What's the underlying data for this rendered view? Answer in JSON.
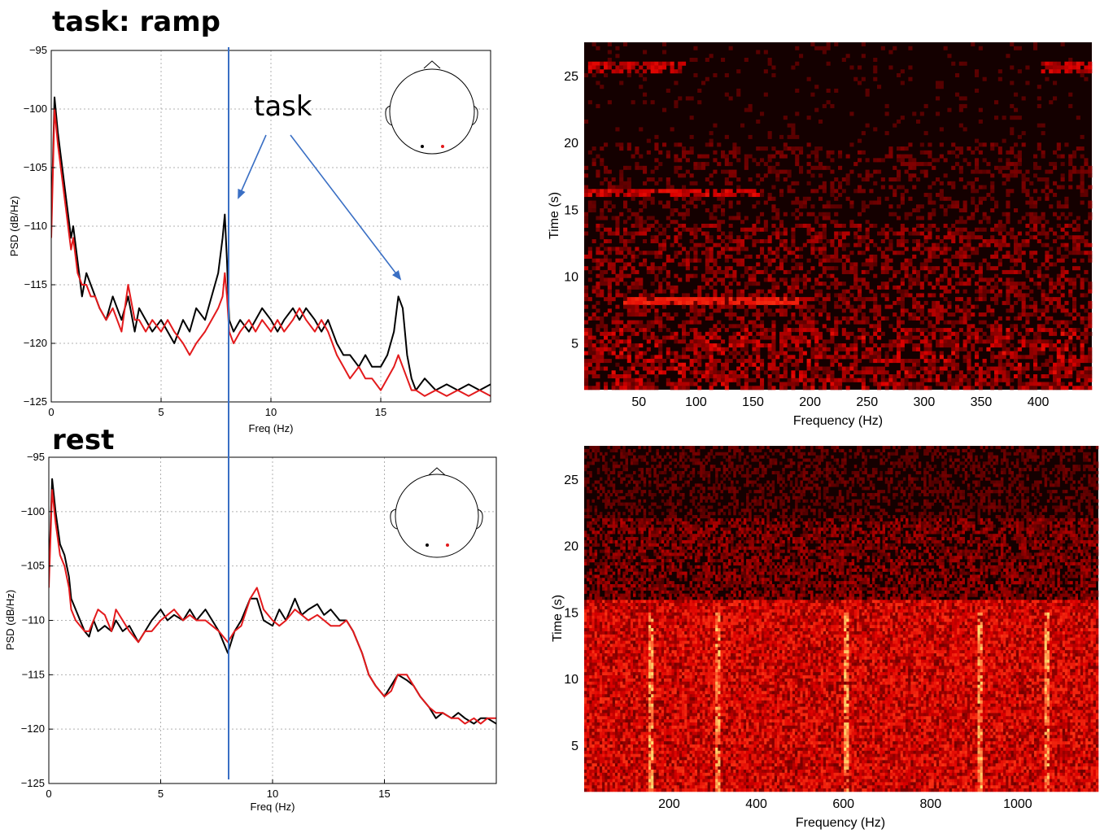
{
  "titles": {
    "task": "task: ramp",
    "rest": "rest"
  },
  "annotation": {
    "text": "task"
  },
  "colors": {
    "black": "#000000",
    "red": "#e31a1c",
    "marker": "#3a6fc4",
    "spec_bg": "#140000"
  },
  "chart_data": [
    {
      "type": "line",
      "id": "psd-task",
      "xlabel": "Freq (Hz)",
      "ylabel": "PSD (dB/Hz)",
      "xlim": [
        0,
        20
      ],
      "ylim": [
        -125,
        -95
      ],
      "xticks": [
        0,
        5,
        10,
        15
      ],
      "yticks": [
        -95,
        -100,
        -105,
        -110,
        -115,
        -120,
        -125
      ],
      "grid": true,
      "marker_line_x": 8,
      "series": [
        {
          "color": "#000000",
          "x": [
            0,
            0.15,
            0.3,
            0.5,
            0.7,
            0.9,
            1,
            1.2,
            1.4,
            1.6,
            1.8,
            2,
            2.2,
            2.5,
            2.8,
            3,
            3.2,
            3.5,
            3.8,
            4,
            4.3,
            4.6,
            5,
            5.3,
            5.6,
            6,
            6.3,
            6.6,
            7,
            7.3,
            7.6,
            7.8,
            7.9,
            8,
            8.1,
            8.3,
            8.6,
            9,
            9.3,
            9.6,
            10,
            10.3,
            10.6,
            11,
            11.3,
            11.6,
            12,
            12.3,
            12.6,
            13,
            13.3,
            13.6,
            14,
            14.3,
            14.6,
            15,
            15.3,
            15.6,
            15.8,
            16,
            16.2,
            16.4,
            16.6,
            17,
            17.5,
            18,
            18.5,
            19,
            19.5,
            20
          ],
          "y": [
            -110,
            -99,
            -102,
            -105,
            -108,
            -111,
            -110,
            -113,
            -116,
            -114,
            -115,
            -116,
            -117,
            -118,
            -116,
            -117,
            -118,
            -116,
            -119,
            -117,
            -118,
            -119,
            -118,
            -119,
            -120,
            -118,
            -119,
            -117,
            -118,
            -116,
            -114,
            -111,
            -109,
            -113,
            -118,
            -119,
            -118,
            -119,
            -118,
            -117,
            -118,
            -119,
            -118,
            -117,
            -118,
            -117,
            -118,
            -119,
            -118,
            -120,
            -121,
            -121,
            -122,
            -121,
            -122,
            -122,
            -121,
            -119,
            -116,
            -117,
            -121,
            -123,
            -124,
            -123,
            -124,
            -123.5,
            -124,
            -123.5,
            -124,
            -123.5
          ]
        },
        {
          "color": "#e31a1c",
          "x": [
            0,
            0.15,
            0.3,
            0.5,
            0.7,
            0.9,
            1,
            1.2,
            1.4,
            1.6,
            1.8,
            2,
            2.2,
            2.5,
            2.8,
            3,
            3.2,
            3.5,
            3.8,
            4,
            4.3,
            4.6,
            5,
            5.3,
            5.6,
            6,
            6.3,
            6.6,
            7,
            7.3,
            7.6,
            7.8,
            7.9,
            8,
            8.1,
            8.3,
            8.6,
            9,
            9.3,
            9.6,
            10,
            10.3,
            10.6,
            11,
            11.3,
            11.6,
            12,
            12.3,
            12.6,
            13,
            13.3,
            13.6,
            14,
            14.3,
            14.6,
            15,
            15.3,
            15.6,
            15.8,
            16,
            16.2,
            16.4,
            16.6,
            17,
            17.5,
            18,
            18.5,
            19,
            19.5,
            20
          ],
          "y": [
            -111,
            -100,
            -103,
            -106,
            -109,
            -112,
            -111,
            -114,
            -115,
            -115,
            -116,
            -116,
            -117,
            -118,
            -117,
            -118,
            -119,
            -115,
            -118,
            -118,
            -119,
            -118,
            -119,
            -118,
            -119,
            -120,
            -121,
            -120,
            -119,
            -118,
            -117,
            -116,
            -114,
            -116,
            -119,
            -120,
            -119,
            -118,
            -119,
            -118,
            -119,
            -118,
            -119,
            -118,
            -117,
            -118,
            -119,
            -118,
            -119,
            -121,
            -122,
            -123,
            -122,
            -123,
            -123,
            -124,
            -123,
            -122,
            -121,
            -122,
            -123,
            -124,
            -124,
            -124.5,
            -124,
            -124.5,
            -124,
            -124.5,
            -124,
            -124.5
          ]
        }
      ]
    },
    {
      "type": "line",
      "id": "psd-rest",
      "xlabel": "Freq (Hz)",
      "ylabel": "PSD (dB/Hz)",
      "xlim": [
        0,
        20
      ],
      "ylim": [
        -125,
        -95
      ],
      "xticks": [
        0,
        5,
        10,
        15
      ],
      "yticks": [
        -95,
        -100,
        -105,
        -110,
        -115,
        -120,
        -125
      ],
      "grid": true,
      "marker_line_x": 8,
      "series": [
        {
          "color": "#000000",
          "x": [
            0,
            0.15,
            0.3,
            0.5,
            0.7,
            0.9,
            1,
            1.2,
            1.4,
            1.6,
            1.8,
            2,
            2.2,
            2.5,
            2.8,
            3,
            3.3,
            3.6,
            4,
            4.3,
            4.6,
            5,
            5.3,
            5.6,
            6,
            6.3,
            6.6,
            7,
            7.3,
            7.6,
            8,
            8.3,
            8.6,
            9,
            9.3,
            9.6,
            10,
            10.3,
            10.6,
            11,
            11.3,
            11.6,
            12,
            12.3,
            12.6,
            13,
            13.3,
            13.6,
            14,
            14.3,
            14.6,
            15,
            15.3,
            15.6,
            16,
            16.3,
            16.6,
            17,
            17.3,
            17.6,
            18,
            18.3,
            18.6,
            19,
            19.3,
            19.6,
            20
          ],
          "y": [
            -106,
            -97,
            -100,
            -103,
            -104,
            -106,
            -108,
            -109,
            -110,
            -111,
            -111.5,
            -110,
            -111,
            -110.5,
            -111,
            -110,
            -111,
            -110.5,
            -112,
            -111,
            -110,
            -109,
            -110,
            -109.5,
            -110,
            -109,
            -110,
            -109,
            -110,
            -111,
            -113,
            -111,
            -110,
            -108,
            -108,
            -110,
            -110.5,
            -109,
            -110,
            -108,
            -109.5,
            -109,
            -108.5,
            -109.5,
            -109,
            -110,
            -110,
            -111,
            -113,
            -115,
            -116,
            -117,
            -116,
            -115,
            -115.5,
            -116,
            -117,
            -118,
            -119,
            -118.5,
            -119,
            -118.5,
            -119,
            -119.5,
            -119,
            -119,
            -119.5
          ]
        },
        {
          "color": "#e31a1c",
          "x": [
            0,
            0.15,
            0.3,
            0.5,
            0.7,
            0.9,
            1,
            1.2,
            1.4,
            1.6,
            1.8,
            2,
            2.2,
            2.5,
            2.8,
            3,
            3.3,
            3.6,
            4,
            4.3,
            4.6,
            5,
            5.3,
            5.6,
            6,
            6.3,
            6.6,
            7,
            7.3,
            7.6,
            8,
            8.3,
            8.6,
            9,
            9.3,
            9.6,
            10,
            10.3,
            10.6,
            11,
            11.3,
            11.6,
            12,
            12.3,
            12.6,
            13,
            13.3,
            13.6,
            14,
            14.3,
            14.6,
            15,
            15.3,
            15.6,
            16,
            16.3,
            16.6,
            17,
            17.3,
            17.6,
            18,
            18.3,
            18.6,
            19,
            19.3,
            19.6,
            20
          ],
          "y": [
            -107,
            -98,
            -101,
            -104,
            -105,
            -107,
            -109,
            -110,
            -110.5,
            -111,
            -111,
            -110,
            -109,
            -109.5,
            -111,
            -109,
            -110,
            -111,
            -112,
            -111,
            -111,
            -110,
            -109.5,
            -109,
            -110,
            -109.5,
            -110,
            -110,
            -110.5,
            -111,
            -112,
            -111,
            -110.5,
            -108,
            -107,
            -109,
            -110,
            -110.5,
            -110,
            -109,
            -109.5,
            -110,
            -109.5,
            -110,
            -110.5,
            -110.5,
            -110,
            -111,
            -113,
            -115,
            -116,
            -117,
            -116.5,
            -115,
            -115,
            -116,
            -117,
            -118,
            -118.5,
            -118.5,
            -119,
            -119,
            -119.5,
            -119,
            -119.5,
            -119,
            -119
          ]
        }
      ]
    },
    {
      "type": "heatmap",
      "id": "spec-task",
      "xlabel": "Frequency (Hz)",
      "ylabel": "Time (s)",
      "xlim": [
        2,
        447
      ],
      "ylim": [
        1.5,
        27.5
      ],
      "xticks": [
        50,
        100,
        150,
        200,
        250,
        300,
        350,
        400
      ],
      "yticks": [
        5,
        10,
        15,
        20,
        25
      ]
    },
    {
      "type": "heatmap",
      "id": "spec-rest",
      "xlabel": "Frequency (Hz)",
      "ylabel": "Time (s)",
      "xlim": [
        5,
        1185
      ],
      "ylim": [
        1.5,
        27.5
      ],
      "xticks": [
        200,
        400,
        600,
        800,
        1000
      ],
      "yticks": [
        5,
        10,
        15,
        20,
        25
      ]
    }
  ]
}
